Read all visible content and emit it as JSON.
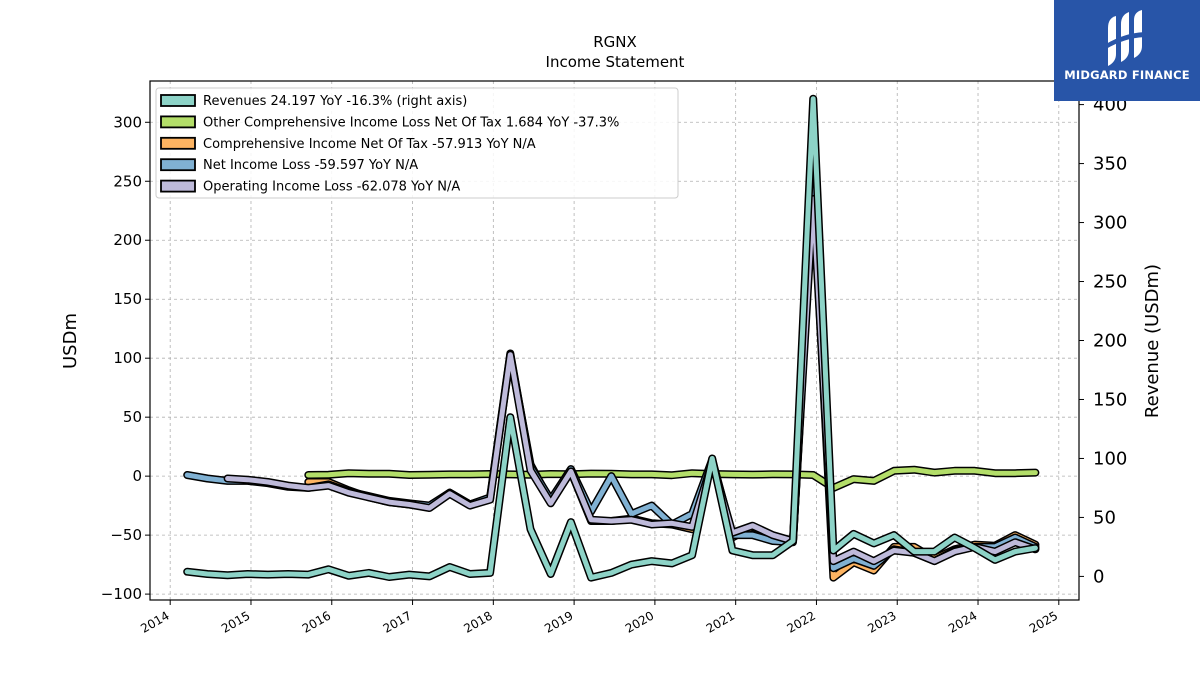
{
  "chart_data": {
    "type": "line",
    "title": "RGNX",
    "subtitle": "Income Statement",
    "ylabel": "USDm",
    "y2label": "Revenue (USDm)",
    "xlim": [
      2013.75,
      2025.25
    ],
    "ylim": [
      -105,
      335
    ],
    "y2lim": [
      -20,
      420
    ],
    "xticks": [
      2014,
      2015,
      2016,
      2017,
      2018,
      2019,
      2020,
      2021,
      2022,
      2023,
      2024,
      2025
    ],
    "yticks": [
      -100,
      -50,
      0,
      50,
      100,
      150,
      200,
      250,
      300
    ],
    "y2ticks": [
      0,
      50,
      100,
      150,
      200,
      250,
      300,
      350,
      400
    ],
    "grid": true,
    "legend_position": "top-left",
    "series": [
      {
        "name": "Revenues  24.197 YoY -16.3% (right axis)",
        "axis": "right",
        "color": "#8dd3c7",
        "points": [
          [
            2014.21,
            4
          ],
          [
            2014.46,
            2
          ],
          [
            2014.71,
            1
          ],
          [
            2014.96,
            2
          ],
          [
            2015.21,
            1.5
          ],
          [
            2015.46,
            2
          ],
          [
            2015.71,
            1.5
          ],
          [
            2015.96,
            6
          ],
          [
            2016.21,
            0.5
          ],
          [
            2016.46,
            3
          ],
          [
            2016.71,
            -0.5
          ],
          [
            2016.96,
            1.5
          ],
          [
            2017.21,
            0
          ],
          [
            2017.46,
            8
          ],
          [
            2017.71,
            2
          ],
          [
            2017.96,
            3
          ],
          [
            2018.21,
            135
          ],
          [
            2018.46,
            40
          ],
          [
            2018.71,
            2
          ],
          [
            2018.96,
            46
          ],
          [
            2019.21,
            -1
          ],
          [
            2019.46,
            3
          ],
          [
            2019.71,
            10
          ],
          [
            2019.96,
            13
          ],
          [
            2020.21,
            11
          ],
          [
            2020.46,
            18
          ],
          [
            2020.71,
            100
          ],
          [
            2020.96,
            22
          ],
          [
            2021.21,
            18
          ],
          [
            2021.46,
            18
          ],
          [
            2021.71,
            30
          ],
          [
            2021.96,
            405
          ],
          [
            2022.21,
            22
          ],
          [
            2022.46,
            36
          ],
          [
            2022.71,
            28
          ],
          [
            2022.96,
            35
          ],
          [
            2023.21,
            21
          ],
          [
            2023.46,
            21
          ],
          [
            2023.71,
            33
          ],
          [
            2023.96,
            24
          ],
          [
            2024.21,
            14
          ],
          [
            2024.46,
            21
          ],
          [
            2024.71,
            24
          ]
        ]
      },
      {
        "name": "Other Comprehensive Income Loss Net Of Tax  1.684 YoY -37.3%",
        "axis": "left",
        "color": "#b3de69",
        "points": [
          [
            2015.71,
            1
          ],
          [
            2015.96,
            1.2
          ],
          [
            2016.21,
            2.5
          ],
          [
            2016.46,
            2
          ],
          [
            2016.71,
            2
          ],
          [
            2016.96,
            1
          ],
          [
            2017.21,
            1.2
          ],
          [
            2017.46,
            1.5
          ],
          [
            2017.71,
            1.5
          ],
          [
            2017.96,
            1.8
          ],
          [
            2018.21,
            1.5
          ],
          [
            2018.46,
            1.2
          ],
          [
            2018.71,
            1.8
          ],
          [
            2018.96,
            1.6
          ],
          [
            2019.21,
            2.2
          ],
          [
            2019.46,
            2
          ],
          [
            2019.71,
            1.5
          ],
          [
            2019.96,
            1.5
          ],
          [
            2020.21,
            0.8
          ],
          [
            2020.46,
            2.5
          ],
          [
            2020.71,
            1.8
          ],
          [
            2020.96,
            1.5
          ],
          [
            2021.21,
            1.3
          ],
          [
            2021.46,
            1.6
          ],
          [
            2021.71,
            1.5
          ],
          [
            2021.96,
            1
          ],
          [
            2022.21,
            -10
          ],
          [
            2022.46,
            -2.5
          ],
          [
            2022.71,
            -4
          ],
          [
            2022.96,
            4.5
          ],
          [
            2023.21,
            5.5
          ],
          [
            2023.46,
            3
          ],
          [
            2023.71,
            4.5
          ],
          [
            2023.96,
            4.5
          ],
          [
            2024.21,
            2.5
          ],
          [
            2024.46,
            2.5
          ],
          [
            2024.71,
            3
          ]
        ]
      },
      {
        "name": "Comprehensive Income Net Of Tax  -57.913 YoY N/A",
        "axis": "left",
        "color": "#fdb462",
        "points": [
          [
            2015.71,
            -5
          ],
          [
            2015.96,
            -5
          ],
          [
            2016.21,
            -12
          ],
          [
            2016.46,
            -18
          ],
          [
            2016.71,
            -22
          ],
          [
            2016.96,
            -24
          ],
          [
            2017.21,
            -26
          ],
          [
            2017.46,
            -14
          ],
          [
            2017.71,
            -24
          ],
          [
            2017.96,
            -19
          ],
          [
            2018.21,
            102
          ],
          [
            2018.46,
            10
          ],
          [
            2018.71,
            -22
          ],
          [
            2018.96,
            4
          ],
          [
            2019.21,
            -38
          ],
          [
            2019.46,
            -38
          ],
          [
            2019.71,
            -36
          ],
          [
            2019.96,
            -40
          ],
          [
            2020.21,
            -41
          ],
          [
            2020.46,
            -45
          ],
          [
            2020.71,
            13
          ],
          [
            2020.96,
            -52
          ],
          [
            2021.21,
            -43
          ],
          [
            2021.46,
            -52
          ],
          [
            2021.71,
            -55
          ],
          [
            2021.96,
            245
          ],
          [
            2022.21,
            -86
          ],
          [
            2022.46,
            -73
          ],
          [
            2022.71,
            -80
          ],
          [
            2022.96,
            -60
          ],
          [
            2023.21,
            -60
          ],
          [
            2023.46,
            -70
          ],
          [
            2023.71,
            -62
          ],
          [
            2023.96,
            -58
          ],
          [
            2024.21,
            -59
          ],
          [
            2024.46,
            -50
          ],
          [
            2024.71,
            -58
          ]
        ]
      },
      {
        "name": "Net Income Loss  -59.597 YoY N/A",
        "axis": "left",
        "color": "#80b1d3",
        "points": [
          [
            2014.21,
            1
          ],
          [
            2014.46,
            -2
          ],
          [
            2014.71,
            -4
          ],
          [
            2014.96,
            -4
          ],
          [
            2015.21,
            -6
          ],
          [
            2015.46,
            -9
          ],
          [
            2015.71,
            -10
          ],
          [
            2015.96,
            -7
          ],
          [
            2016.21,
            -13
          ],
          [
            2016.46,
            -17
          ],
          [
            2016.71,
            -21
          ],
          [
            2016.96,
            -23
          ],
          [
            2017.21,
            -25
          ],
          [
            2017.46,
            -14
          ],
          [
            2017.71,
            -24
          ],
          [
            2017.96,
            -18
          ],
          [
            2018.21,
            104
          ],
          [
            2018.46,
            8
          ],
          [
            2018.71,
            -20
          ],
          [
            2018.96,
            6
          ],
          [
            2019.21,
            -30
          ],
          [
            2019.46,
            0
          ],
          [
            2019.71,
            -32
          ],
          [
            2019.96,
            -25
          ],
          [
            2020.21,
            -41
          ],
          [
            2020.46,
            -32
          ],
          [
            2020.71,
            14
          ],
          [
            2020.96,
            -50
          ],
          [
            2021.21,
            -50
          ],
          [
            2021.46,
            -55
          ],
          [
            2021.71,
            -56
          ],
          [
            2021.96,
            247
          ],
          [
            2022.21,
            -78
          ],
          [
            2022.46,
            -70
          ],
          [
            2022.71,
            -76
          ],
          [
            2022.96,
            -62
          ],
          [
            2023.21,
            -65
          ],
          [
            2023.46,
            -72
          ],
          [
            2023.71,
            -63
          ],
          [
            2023.96,
            -60
          ],
          [
            2024.21,
            -60
          ],
          [
            2024.46,
            -52
          ],
          [
            2024.71,
            -60
          ]
        ]
      },
      {
        "name": "Operating Income Loss  -62.078 YoY N/A",
        "axis": "left",
        "color": "#bebada",
        "points": [
          [
            2014.71,
            -2
          ],
          [
            2014.96,
            -3
          ],
          [
            2015.21,
            -5
          ],
          [
            2015.46,
            -8
          ],
          [
            2015.71,
            -10
          ],
          [
            2015.96,
            -8
          ],
          [
            2016.21,
            -14
          ],
          [
            2016.46,
            -18
          ],
          [
            2016.71,
            -22
          ],
          [
            2016.96,
            -24
          ],
          [
            2017.21,
            -27
          ],
          [
            2017.46,
            -15
          ],
          [
            2017.71,
            -25
          ],
          [
            2017.96,
            -20
          ],
          [
            2018.21,
            103
          ],
          [
            2018.46,
            5
          ],
          [
            2018.71,
            -23
          ],
          [
            2018.96,
            4
          ],
          [
            2019.21,
            -37
          ],
          [
            2019.46,
            -38
          ],
          [
            2019.71,
            -37
          ],
          [
            2019.96,
            -41
          ],
          [
            2020.21,
            -40
          ],
          [
            2020.46,
            -43
          ],
          [
            2020.71,
            12
          ],
          [
            2020.96,
            -48
          ],
          [
            2021.21,
            -42
          ],
          [
            2021.46,
            -50
          ],
          [
            2021.71,
            -55
          ],
          [
            2021.96,
            235
          ],
          [
            2022.21,
            -72
          ],
          [
            2022.46,
            -64
          ],
          [
            2022.71,
            -72
          ],
          [
            2022.96,
            -63
          ],
          [
            2023.21,
            -65
          ],
          [
            2023.46,
            -72
          ],
          [
            2023.71,
            -64
          ],
          [
            2023.96,
            -60
          ],
          [
            2024.21,
            -64
          ],
          [
            2024.46,
            -56
          ],
          [
            2024.71,
            -62
          ]
        ]
      }
    ]
  },
  "brand": {
    "name": "MIDGARD FINANCE",
    "background": "#2855a8"
  }
}
